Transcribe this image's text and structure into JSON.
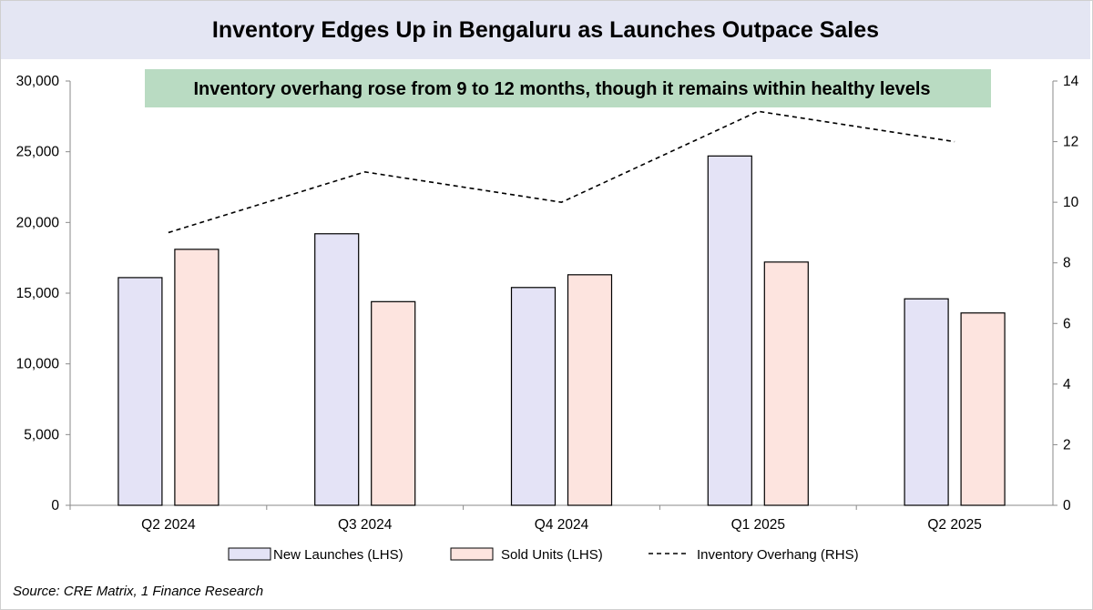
{
  "title": "Inventory Edges Up in Bengaluru as Launches Outpace Sales",
  "annotation": "Inventory overhang rose from 9 to 12 months, though it remains within healthy levels",
  "source": "Source: CRE Matrix, 1 Finance Research",
  "colors": {
    "launches_fill": "#e4e3f6",
    "sold_fill": "#fde4df",
    "annotation_bg": "#b9dbc2",
    "title_bg": "#e4e6f3",
    "line": "#000000"
  },
  "chart_data": {
    "type": "bar",
    "categories": [
      "Q2 2024",
      "Q3 2024",
      "Q4 2024",
      "Q1 2025",
      "Q2 2025"
    ],
    "series": [
      {
        "name": "New Launches (LHS)",
        "kind": "bar",
        "axis": "left",
        "values": [
          16100,
          19200,
          15400,
          24700,
          14600
        ]
      },
      {
        "name": "Sold Units (LHS)",
        "kind": "bar",
        "axis": "left",
        "values": [
          18100,
          14400,
          16300,
          17200,
          13600
        ]
      },
      {
        "name": "Inventory Overhang (RHS)",
        "kind": "line",
        "style": "dashed",
        "axis": "right",
        "values": [
          9,
          11,
          10,
          13,
          12
        ]
      }
    ],
    "left_axis": {
      "range": [
        0,
        30000
      ],
      "ticks": [
        "0",
        "5,000",
        "10,000",
        "15,000",
        "20,000",
        "25,000",
        "30,000"
      ]
    },
    "right_axis": {
      "range": [
        0,
        14
      ],
      "ticks": [
        "0",
        "2",
        "4",
        "6",
        "8",
        "10",
        "12",
        "14"
      ]
    },
    "grid": false,
    "legend_position": "bottom"
  }
}
